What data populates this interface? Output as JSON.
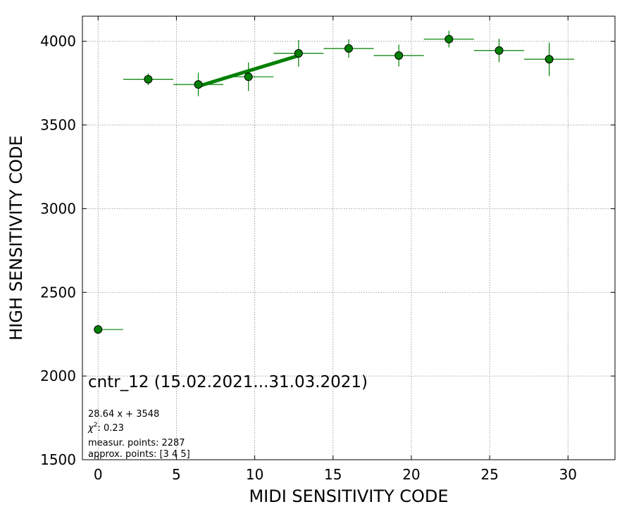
{
  "chart_data": {
    "type": "scatter",
    "xlabel": "MIDI SENSITIVITY CODE",
    "ylabel": "HIGH SENSITIVITY CODE",
    "xlim": [
      -1,
      33
    ],
    "ylim": [
      1500,
      4150
    ],
    "xticks": [
      0,
      5,
      10,
      15,
      20,
      25,
      30
    ],
    "yticks": [
      1500,
      2000,
      2500,
      3000,
      3500,
      4000
    ],
    "grid": true,
    "series": [
      {
        "marker": "circle",
        "color": "#008000",
        "points": [
          {
            "x": 0.0,
            "y": 2278,
            "xerr_lo": 0.0,
            "xerr_hi": 1.6,
            "yerr": 0
          },
          {
            "x": 3.2,
            "y": 3773,
            "xerr_lo": 1.6,
            "xerr_hi": 1.6,
            "yerr": 35
          },
          {
            "x": 6.4,
            "y": 3742,
            "xerr_lo": 1.6,
            "xerr_hi": 1.6,
            "yerr": 70
          },
          {
            "x": 9.6,
            "y": 3788,
            "xerr_lo": 1.6,
            "xerr_hi": 1.6,
            "yerr": 85
          },
          {
            "x": 12.8,
            "y": 3928,
            "xerr_lo": 1.6,
            "xerr_hi": 1.6,
            "yerr": 80
          },
          {
            "x": 16.0,
            "y": 3957,
            "xerr_lo": 1.6,
            "xerr_hi": 1.6,
            "yerr": 55
          },
          {
            "x": 19.2,
            "y": 3915,
            "xerr_lo": 1.6,
            "xerr_hi": 1.6,
            "yerr": 65
          },
          {
            "x": 22.4,
            "y": 4013,
            "xerr_lo": 1.6,
            "xerr_hi": 1.6,
            "yerr": 50
          },
          {
            "x": 25.6,
            "y": 3945,
            "xerr_lo": 1.6,
            "xerr_hi": 1.6,
            "yerr": 70
          },
          {
            "x": 28.8,
            "y": 3893,
            "xerr_lo": 1.6,
            "xerr_hi": 1.6,
            "yerr": 100
          }
        ]
      }
    ],
    "fit_line": {
      "slope": 28.64,
      "intercept": 3548,
      "x_range": [
        6.4,
        12.8
      ],
      "color": "#008000"
    },
    "annotations": {
      "title": "cntr_12 (15.02.2021...31.03.2021)",
      "equation": "28.64 x + 3548",
      "chi2_prefix": "χ",
      "chi2_exp": "2",
      "chi2_value": ": 0.23",
      "measur_points": "measur. points: 2287",
      "approx_points": "approx. points: [3 4 5]"
    }
  }
}
